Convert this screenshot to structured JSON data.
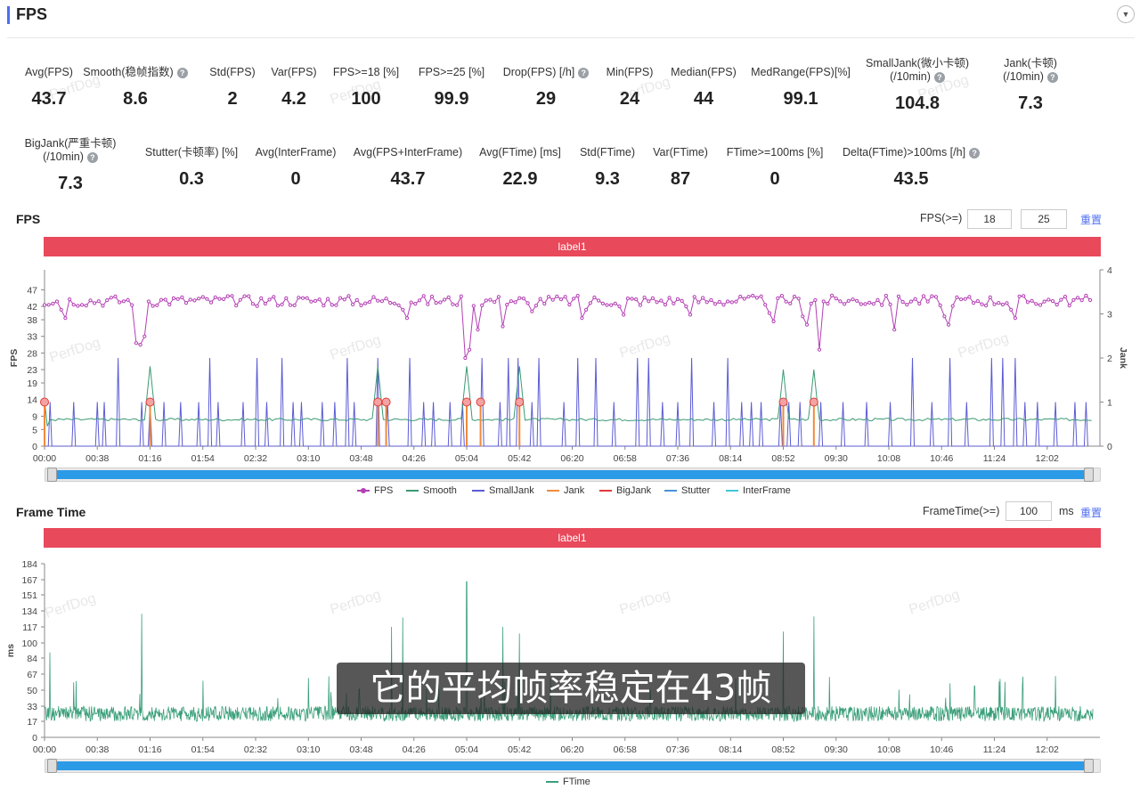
{
  "header": {
    "title": "FPS",
    "collapse_icon": "chevron-down-icon"
  },
  "stats_row1": [
    {
      "label": "Avg(FPS)",
      "value": "43.7",
      "help": false
    },
    {
      "label": "Smooth(稳帧指数)",
      "value": "8.6",
      "help": true
    },
    {
      "label": "Std(FPS)",
      "value": "2",
      "help": false
    },
    {
      "label": "Var(FPS)",
      "value": "4.2",
      "help": false
    },
    {
      "label": "FPS>=18 [%]",
      "value": "100",
      "help": false
    },
    {
      "label": "FPS>=25 [%]",
      "value": "99.9",
      "help": false
    },
    {
      "label": "Drop(FPS) [/h]",
      "value": "29",
      "help": true
    },
    {
      "label": "Min(FPS)",
      "value": "24",
      "help": false
    },
    {
      "label": "Median(FPS)",
      "value": "44",
      "help": false
    },
    {
      "label": "MedRange(FPS)[%]",
      "value": "99.1",
      "help": false
    },
    {
      "label": "SmallJank(微小卡顿)",
      "label2": "(/10min)",
      "value": "104.8",
      "help": true
    },
    {
      "label": "Jank(卡顿)",
      "label2": "(/10min)",
      "value": "7.3",
      "help": true
    }
  ],
  "stats_row2": [
    {
      "label": "BigJank(严重卡顿)",
      "label2": "(/10min)",
      "value": "7.3",
      "help": true
    },
    {
      "label": "Stutter(卡顿率) [%]",
      "value": "0.3",
      "help": false
    },
    {
      "label": "Avg(InterFrame)",
      "value": "0",
      "help": false
    },
    {
      "label": "Avg(FPS+InterFrame)",
      "value": "43.7",
      "help": false
    },
    {
      "label": "Avg(FTime) [ms]",
      "value": "22.9",
      "help": false
    },
    {
      "label": "Std(FTime)",
      "value": "9.3",
      "help": false
    },
    {
      "label": "Var(FTime)",
      "value": "87",
      "help": false
    },
    {
      "label": "FTime>=100ms [%]",
      "value": "0",
      "help": false
    },
    {
      "label": "Delta(FTime)>100ms [/h]",
      "value": "43.5",
      "help": true
    }
  ],
  "fps_section": {
    "title": "FPS",
    "threshold_label": "FPS(>=)",
    "threshold1": "18",
    "threshold2": "25",
    "reset_label": "重置",
    "label_bar": "label1"
  },
  "frame_time_section": {
    "title": "Frame Time",
    "threshold_label": "FrameTime(>=)",
    "threshold": "100",
    "unit": "ms",
    "reset_label": "重置",
    "label_bar": "label1"
  },
  "subtitle": "它的平均帧率稳定在43帧",
  "watermark": "PerfDog",
  "colors": {
    "fps": "#b43fb4",
    "smooth": "#3a9a73",
    "smalljank": "#5b5bd6",
    "jank": "#f08a3c",
    "bigjank": "#e03a3a",
    "stutter": "#4a90d9",
    "interframe": "#3fc6d8",
    "ftime": "#3a9f7a",
    "label_bar": "#e8495b",
    "accent": "#4e6ef2"
  },
  "chart_data": [
    {
      "type": "line",
      "title": "FPS",
      "xlabel": "",
      "ylabel": "FPS",
      "y2label": "Jank",
      "x_ticks": [
        "00:00",
        "00:38",
        "01:16",
        "01:54",
        "02:32",
        "03:10",
        "03:48",
        "04:26",
        "05:04",
        "05:42",
        "06:20",
        "06:58",
        "07:36",
        "08:14",
        "08:52",
        "09:30",
        "10:08",
        "10:46",
        "11:24",
        "12:02"
      ],
      "y_ticks": [
        0,
        5,
        9,
        14,
        19,
        23,
        28,
        33,
        38,
        42,
        47
      ],
      "y2_ticks": [
        0,
        1,
        2,
        3,
        4
      ],
      "ylim": [
        0,
        53
      ],
      "y2lim": [
        0,
        4
      ],
      "legend": [
        "FPS",
        "Smooth",
        "SmallJank",
        "Jank",
        "BigJank",
        "Stutter",
        "InterFrame"
      ],
      "legend_position": "bottom",
      "series": [
        {
          "name": "FPS",
          "approx_mean": 43.7,
          "min": 24,
          "dips": [
            [
              "00:14",
              36
            ],
            [
              "01:06",
              31
            ],
            [
              "01:10",
              28
            ],
            [
              "04:20",
              36
            ],
            [
              "05:04",
              24
            ],
            [
              "05:12",
              35
            ],
            [
              "05:30",
              36
            ],
            [
              "05:50",
              38
            ],
            [
              "06:28",
              36
            ],
            [
              "06:56",
              37
            ],
            [
              "07:44",
              37
            ],
            [
              "08:44",
              35
            ],
            [
              "09:08",
              34
            ],
            [
              "09:18",
              29
            ],
            [
              "10:12",
              35
            ],
            [
              "10:50",
              34
            ],
            [
              "11:38",
              36
            ]
          ]
        },
        {
          "name": "Smooth",
          "approx_level": 8,
          "peaks": [
            [
              "00:00",
              14
            ],
            [
              "01:16",
              24
            ],
            [
              "04:00",
              24
            ],
            [
              "05:04",
              24
            ],
            [
              "05:42",
              24
            ],
            [
              "08:52",
              23
            ],
            [
              "09:14",
              23
            ]
          ]
        },
        {
          "name": "SmallJank",
          "spikes_value": 1,
          "max": 3,
          "max_at": "03:10"
        },
        {
          "name": "Jank",
          "points": [
            "00:00",
            "01:16",
            "04:00",
            "04:06",
            "05:04",
            "05:14",
            "05:42",
            "08:52",
            "09:14"
          ]
        },
        {
          "name": "BigJank",
          "points": [
            "00:00",
            "01:16",
            "04:00",
            "04:06",
            "05:04",
            "05:14",
            "05:42",
            "08:52",
            "09:14"
          ]
        }
      ]
    },
    {
      "type": "line",
      "title": "Frame Time",
      "xlabel": "",
      "ylabel": "ms",
      "x_ticks": [
        "00:00",
        "00:38",
        "01:16",
        "01:54",
        "02:32",
        "03:10",
        "03:48",
        "04:26",
        "05:04",
        "05:42",
        "06:20",
        "06:58",
        "07:36",
        "08:14",
        "08:52",
        "09:30",
        "10:08",
        "10:46",
        "11:24",
        "12:02"
      ],
      "y_ticks": [
        0,
        17,
        33,
        50,
        67,
        84,
        100,
        117,
        134,
        151,
        167,
        184
      ],
      "ylim": [
        0,
        184
      ],
      "legend": [
        "FTime"
      ],
      "legend_position": "bottom",
      "series": [
        {
          "name": "FTime",
          "approx_band": [
            17,
            33
          ],
          "approx_mean": 22.9,
          "spikes": [
            [
              "00:04",
              90
            ],
            [
              "01:10",
              131
            ],
            [
              "01:54",
              60
            ],
            [
              "03:10",
              63
            ],
            [
              "04:10",
              117
            ],
            [
              "04:18",
              127
            ],
            [
              "05:04",
              165
            ],
            [
              "05:30",
              117
            ],
            [
              "05:42",
              110
            ],
            [
              "08:52",
              112
            ],
            [
              "09:14",
              128
            ],
            [
              "11:28",
              62
            ],
            [
              "12:08",
              65
            ]
          ]
        }
      ]
    }
  ]
}
